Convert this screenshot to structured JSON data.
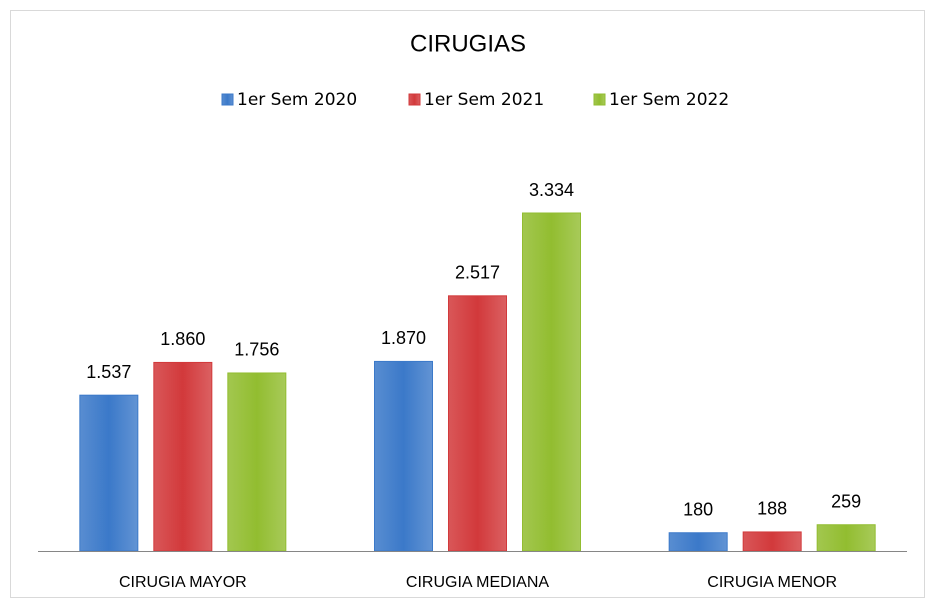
{
  "chart_data": {
    "type": "bar",
    "title": "CIRUGIAS",
    "categories": [
      "CIRUGIA MAYOR",
      "CIRUGIA MEDIANA",
      "CIRUGIA MENOR"
    ],
    "series": [
      {
        "name": "1er Sem 2020",
        "color": "#3b79c9",
        "values": [
          1537,
          1870,
          180
        ],
        "value_labels": [
          "1.537",
          "1.870",
          "180"
        ]
      },
      {
        "name": "1er Sem 2021",
        "color": "#d2393b",
        "values": [
          1860,
          2517,
          188
        ],
        "value_labels": [
          "1.860",
          "2.517",
          "188"
        ]
      },
      {
        "name": "1er Sem 2022",
        "color": "#92bd30",
        "values": [
          1756,
          3334,
          259
        ],
        "value_labels": [
          "1.756",
          "3.334",
          "259"
        ]
      }
    ],
    "legend": "top"
  }
}
